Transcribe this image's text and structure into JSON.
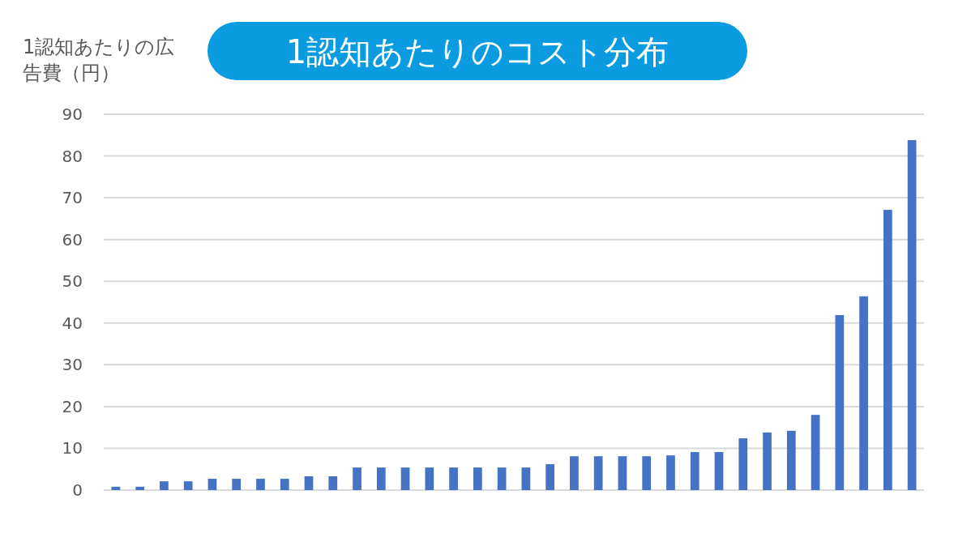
{
  "chart_data": {
    "type": "bar",
    "title": "1認知あたりのコスト分布",
    "ylabel": "1認知あたりの広告費（円）",
    "categories": [
      null,
      null,
      null,
      null,
      null,
      null,
      null,
      null,
      null,
      null,
      null,
      null,
      null,
      null,
      null,
      null,
      null,
      null,
      null,
      null,
      null,
      null,
      null,
      null,
      null,
      null,
      null,
      null,
      null,
      null,
      null,
      null,
      null,
      null
    ],
    "values": [
      0.8,
      0.8,
      2.1,
      2.1,
      2.7,
      2.7,
      2.7,
      2.7,
      3.3,
      3.3,
      5.4,
      5.4,
      5.4,
      5.4,
      5.4,
      5.4,
      5.4,
      5.4,
      6.2,
      8.1,
      8.1,
      8.1,
      8.1,
      8.3,
      9.1,
      9.1,
      12.4,
      13.8,
      14.2,
      18.0,
      41.9,
      46.4,
      67.1,
      83.8
    ],
    "color": "#4472c4",
    "ylim": [
      0,
      90
    ],
    "yticks": [
      0,
      10,
      20,
      30,
      40,
      50,
      60,
      70,
      80,
      90
    ],
    "grid": "y"
  }
}
